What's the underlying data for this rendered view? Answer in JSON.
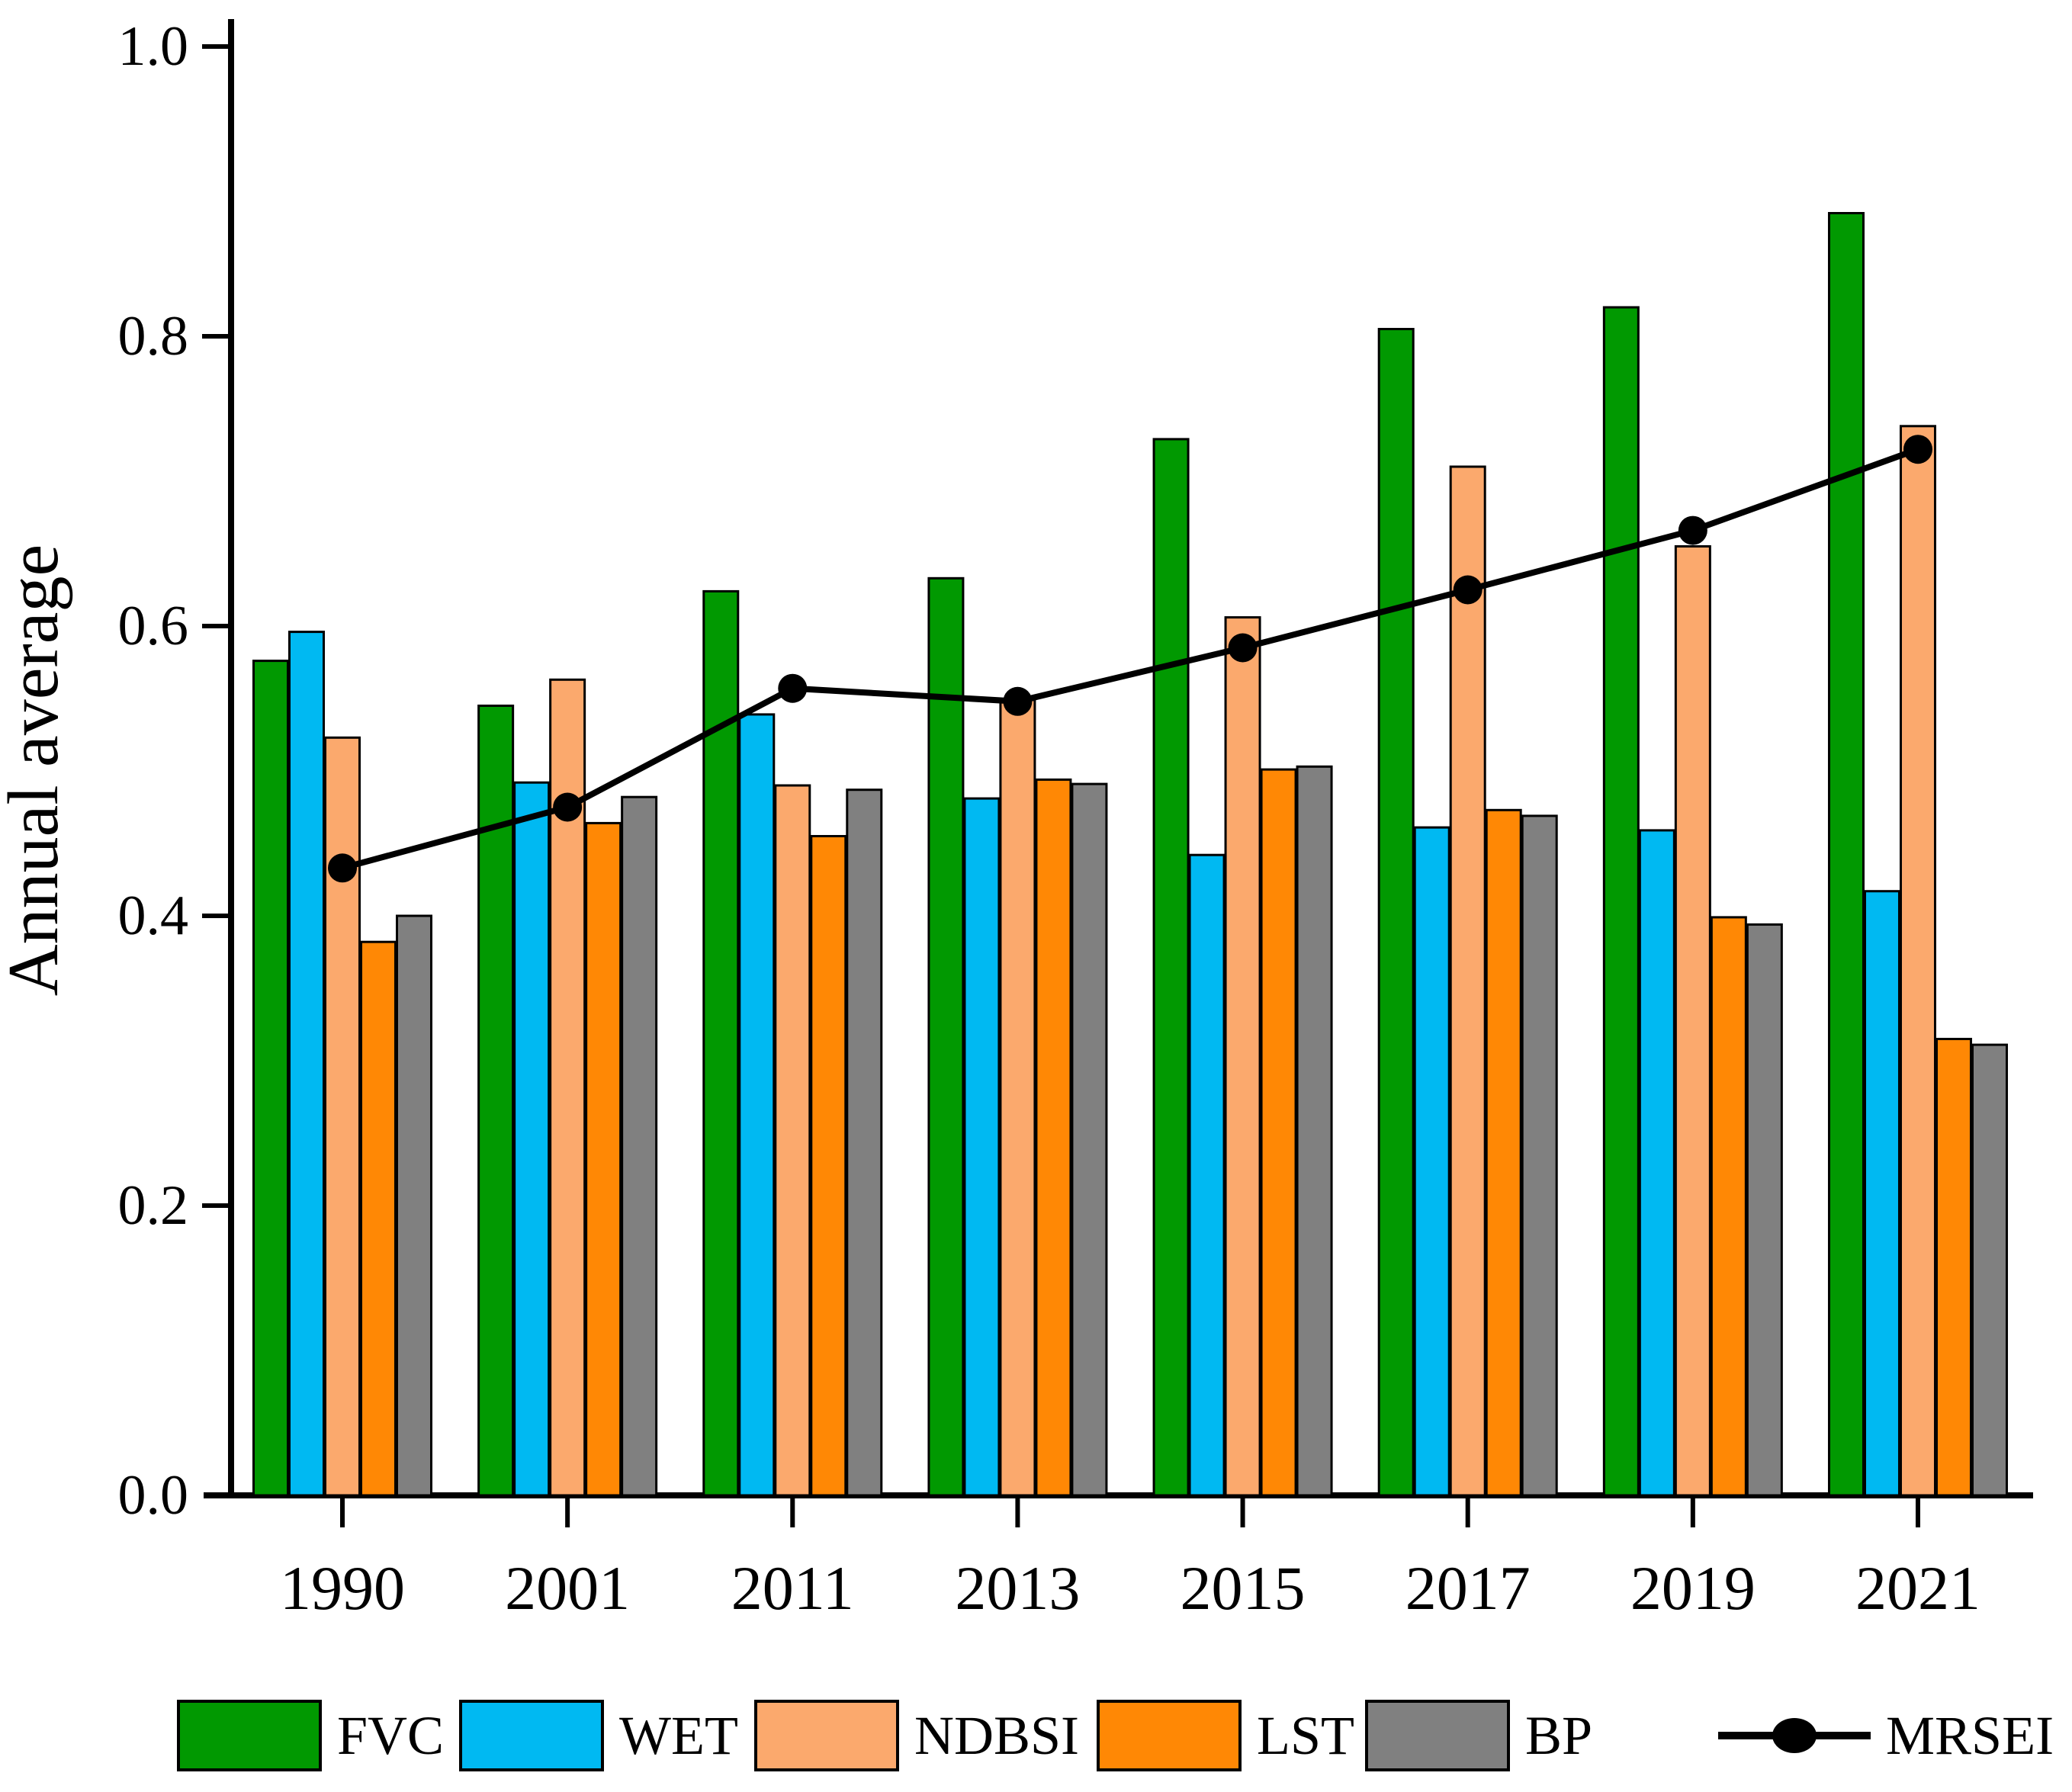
{
  "chart_data": {
    "type": "bar",
    "title": "",
    "xlabel": "",
    "ylabel": "Annual average",
    "categories": [
      "1990",
      "2001",
      "2011",
      "2013",
      "2015",
      "2017",
      "2019",
      "2021"
    ],
    "series": [
      {
        "name": "FVC",
        "type": "bar",
        "color": "#019901",
        "values": [
          0.576,
          0.545,
          0.624,
          0.633,
          0.729,
          0.805,
          0.82,
          0.885
        ]
      },
      {
        "name": "WET",
        "type": "bar",
        "color": "#00B9F2",
        "values": [
          0.596,
          0.492,
          0.539,
          0.481,
          0.442,
          0.461,
          0.459,
          0.417
        ]
      },
      {
        "name": "NDBSI",
        "type": "bar",
        "color": "#FBA96D",
        "values": [
          0.523,
          0.563,
          0.49,
          0.549,
          0.606,
          0.71,
          0.655,
          0.738
        ]
      },
      {
        "name": "LST",
        "type": "bar",
        "color": "#FF8805",
        "values": [
          0.382,
          0.464,
          0.455,
          0.494,
          0.501,
          0.473,
          0.399,
          0.315
        ]
      },
      {
        "name": "BP",
        "type": "bar",
        "color": "#808080",
        "values": [
          0.4,
          0.482,
          0.487,
          0.491,
          0.503,
          0.469,
          0.394,
          0.311
        ]
      },
      {
        "name": "MRSEI",
        "type": "line",
        "color": "#000000",
        "values": [
          0.433,
          0.475,
          0.557,
          0.548,
          0.585,
          0.625,
          0.666,
          0.722
        ]
      }
    ],
    "ylim": [
      0.0,
      1.0
    ],
    "yticks": [
      "0.0",
      "0.2",
      "0.4",
      "0.6",
      "0.8",
      "1.0"
    ],
    "grid": false,
    "legend_position": "bottom",
    "bar_edge_color": "#000000",
    "axis_color": "#000000"
  }
}
